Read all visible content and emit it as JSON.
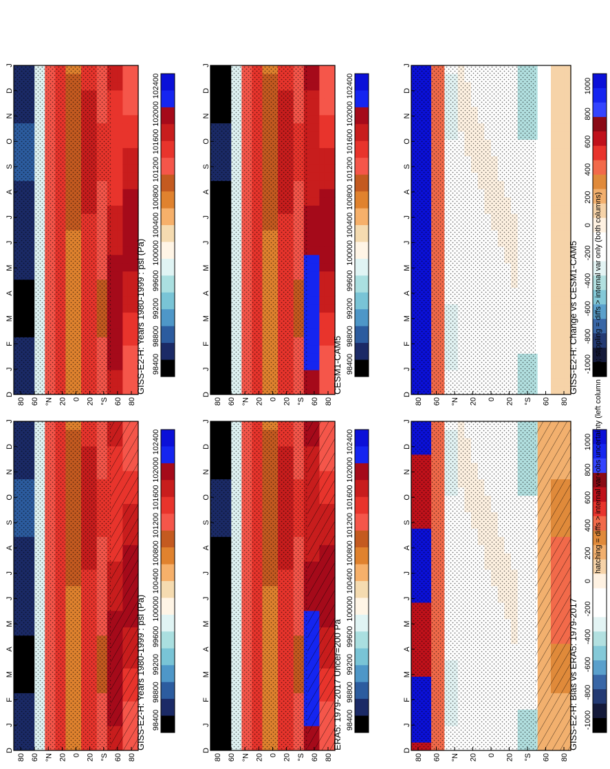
{
  "figure": {
    "footnote": "hatching = diffs > internal var+obs uncertainty (left column only); stippling = diffs > internal var only (both columns)"
  },
  "chart_data": [
    {
      "id": "giss-left",
      "type": "heatmap",
      "title": "GISS-E2-H: Years 1980-1999 : psl (Pa)",
      "months": [
        "D",
        "J",
        "F",
        "M",
        "A",
        "M",
        "J",
        "J",
        "A",
        "S",
        "O",
        "N",
        "D",
        "J"
      ],
      "lat_ticks": [
        "80",
        "60",
        "°N",
        "20",
        "0",
        "20",
        "°S",
        "60",
        "80"
      ],
      "colorbar_labels": [
        "102400",
        "102000",
        "101600",
        "101200",
        "100800",
        "100400",
        "100000",
        "99600",
        "99200",
        "98800",
        "98400"
      ],
      "colors": [
        "#0b10d8",
        "#1525f0",
        "#a50a1a",
        "#c81d1d",
        "#e8342c",
        "#f5564a",
        "#c45a20",
        "#e0822e",
        "#f6b06a",
        "#f5dbb0",
        "#fff5e6",
        "#e0f4f4",
        "#aadfe0",
        "#79c4d6",
        "#4e97c8",
        "#2c5c9f",
        "#1b2a66",
        "#000000"
      ],
      "hatched": true
    },
    {
      "id": "giss-right",
      "type": "heatmap",
      "title": "GISS-E2-H: Years 1980-1999 : psl (Pa)",
      "months": [
        "D",
        "J",
        "F",
        "M",
        "A",
        "M",
        "J",
        "J",
        "A",
        "S",
        "O",
        "N",
        "D",
        "J"
      ],
      "lat_ticks": [
        "80",
        "60",
        "°N",
        "20",
        "0",
        "20",
        "°S",
        "60",
        "80"
      ],
      "colorbar_labels": [
        "102400",
        "102000",
        "101600",
        "101200",
        "100800",
        "100400",
        "100000",
        "99600",
        "99200",
        "98800",
        "98400"
      ],
      "hatched": false
    },
    {
      "id": "era5",
      "type": "heatmap",
      "title": "ERA5: 1979-2017 Uncer=200 Pa",
      "months": [
        "D",
        "J",
        "F",
        "M",
        "A",
        "M",
        "J",
        "J",
        "A",
        "S",
        "O",
        "N",
        "D",
        "J"
      ],
      "lat_ticks": [
        "80",
        "60",
        "°N",
        "20",
        "0",
        "20",
        "°S",
        "60",
        "80"
      ],
      "colorbar_labels": [
        "102400",
        "102000",
        "101600",
        "101200",
        "100800",
        "100400",
        "100000",
        "99600",
        "99200",
        "98800",
        "98400"
      ],
      "hatched": true
    },
    {
      "id": "cesm",
      "type": "heatmap",
      "title": "CESM1-CAM5",
      "months": [
        "D",
        "J",
        "F",
        "M",
        "A",
        "M",
        "J",
        "J",
        "A",
        "S",
        "O",
        "N",
        "D",
        "J"
      ],
      "lat_ticks": [
        "80",
        "60",
        "°N",
        "20",
        "0",
        "20",
        "°S",
        "60",
        "80"
      ],
      "colorbar_labels": [
        "102400",
        "102000",
        "101600",
        "101200",
        "100800",
        "100400",
        "100000",
        "99600",
        "99200",
        "98800",
        "98400"
      ],
      "hatched": false
    },
    {
      "id": "bias",
      "type": "heatmap",
      "title": "GISS-E2-H: Bias vs ERA5: 1979-2017",
      "months": [
        "D",
        "J",
        "F",
        "M",
        "A",
        "M",
        "J",
        "J",
        "A",
        "S",
        "O",
        "N",
        "D",
        "J"
      ],
      "lat_ticks": [
        "80",
        "60",
        "°N",
        "20",
        "0",
        "20",
        "°S",
        "60",
        "80"
      ],
      "colorbar_labels": [
        "1000",
        "800",
        "600",
        "400",
        "200",
        "0",
        "-200",
        "-400",
        "-600",
        "-800",
        "-1000"
      ],
      "hatched": true
    },
    {
      "id": "change",
      "type": "heatmap",
      "title": "GISS-E2-H: Change vs CESM1-CAM5",
      "months": [
        "D",
        "J",
        "F",
        "M",
        "A",
        "M",
        "J",
        "J",
        "A",
        "S",
        "O",
        "N",
        "D",
        "J"
      ],
      "lat_ticks": [
        "80",
        "60",
        "°N",
        "20",
        "0",
        "20",
        "°S",
        "60",
        "80"
      ],
      "colorbar_labels": [
        "1000",
        "800",
        "600",
        "400",
        "200",
        "0",
        "-200",
        "-400",
        "-600",
        "-800",
        "-1000"
      ],
      "hatched": false
    }
  ]
}
